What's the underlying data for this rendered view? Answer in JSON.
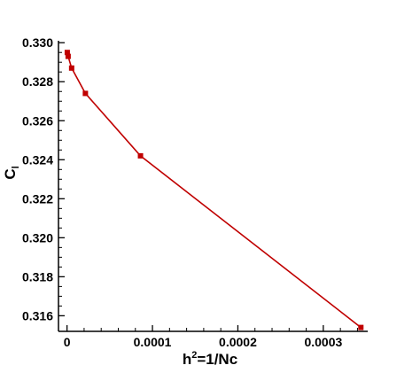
{
  "chart_data": {
    "type": "line",
    "title": "",
    "xlabel": {
      "base": "h",
      "superscript": "2",
      "rest": "=1/Nc"
    },
    "ylabel": {
      "base": "C",
      "subscript": "l"
    },
    "xlim": [
      -1e-05,
      0.000352
    ],
    "ylim": [
      0.3152,
      0.3301
    ],
    "x_ticks": [
      {
        "value": 0,
        "label": "0"
      },
      {
        "value": 0.0001,
        "label": "0.0001"
      },
      {
        "value": 0.0002,
        "label": "0.0002"
      },
      {
        "value": 0.0003,
        "label": "0.0003"
      }
    ],
    "y_ticks": [
      {
        "value": 0.316,
        "label": "0.316"
      },
      {
        "value": 0.318,
        "label": "0.318"
      },
      {
        "value": 0.32,
        "label": "0.320"
      },
      {
        "value": 0.322,
        "label": "0.322"
      },
      {
        "value": 0.324,
        "label": "0.324"
      },
      {
        "value": 0.326,
        "label": "0.326"
      },
      {
        "value": 0.328,
        "label": "0.328"
      },
      {
        "value": 0.33,
        "label": "0.330"
      }
    ],
    "grid": false,
    "legend": "none",
    "series": [
      {
        "color": "#c00000",
        "marker": "square",
        "x": [
          3e-07,
          1.3e-06,
          5.4e-06,
          2.15e-05,
          8.6e-05,
          0.000344
        ],
        "y": [
          0.3295,
          0.3293,
          0.3287,
          0.3274,
          0.3242,
          0.3154
        ]
      }
    ]
  }
}
